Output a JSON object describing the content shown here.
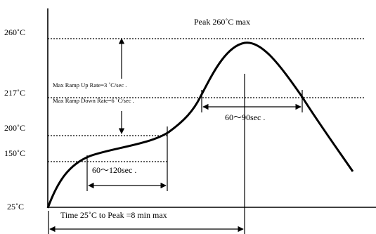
{
  "y_axis_labels": [
    "260˚C",
    "217˚C",
    "200˚C",
    "150˚C",
    "25˚C"
  ],
  "annotations": {
    "peak": "Peak  260˚C max",
    "ramp_up": "Max Ramp Up Rate=3  ˚C/sec .",
    "ramp_down": "Max Ramp Down Rate=6  ˚C/sec .",
    "time_above_217": "60〜90sec .",
    "preheat_time": "60〜120sec  .",
    "total_time": "Time 25˚C to Peak =8 min max"
  }
}
